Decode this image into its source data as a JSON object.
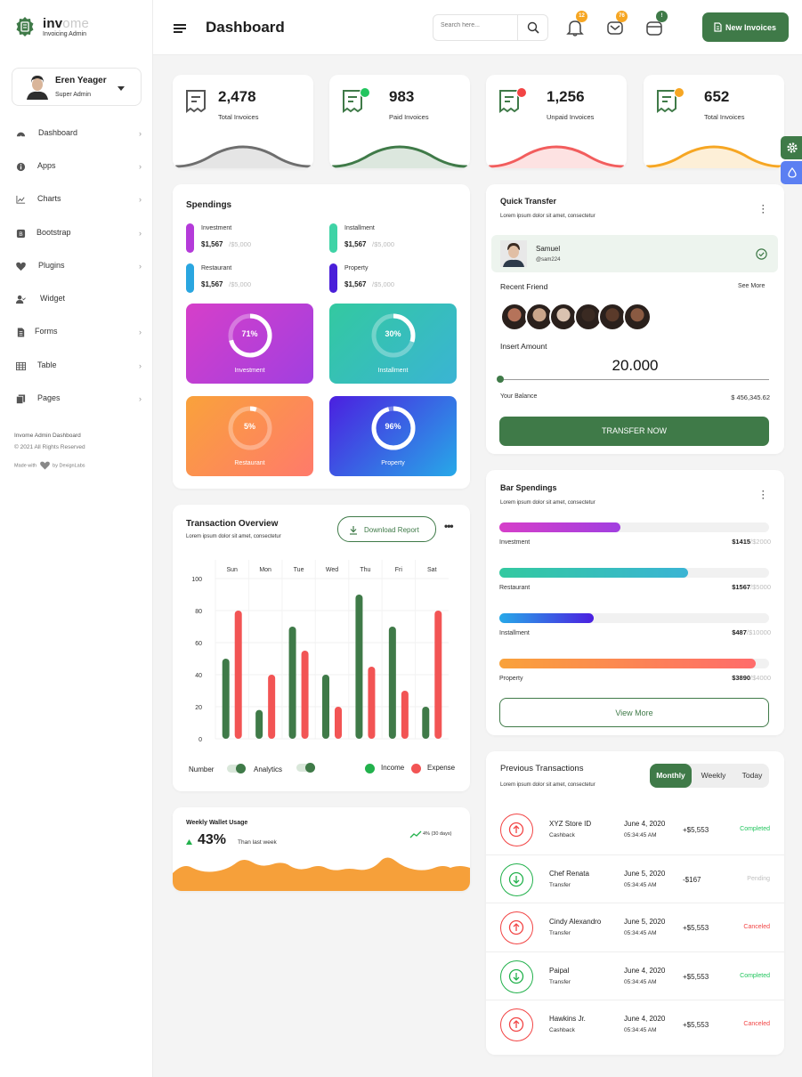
{
  "brand": {
    "name_main": "inv",
    "name_alt": "ome",
    "subtitle": "Invoicing Admin"
  },
  "profile": {
    "name": "Eren Yeager",
    "role": "Super Admin"
  },
  "sidebar": {
    "items": [
      {
        "label": "Dashboard",
        "icon": "dashboard-icon"
      },
      {
        "label": "Apps",
        "icon": "info-icon"
      },
      {
        "label": "Charts",
        "icon": "chart-icon"
      },
      {
        "label": "Bootstrap",
        "icon": "bootstrap-icon"
      },
      {
        "label": "Plugins",
        "icon": "heart-icon"
      },
      {
        "label": "Widget",
        "icon": "user-check-icon"
      },
      {
        "label": "Forms",
        "icon": "file-icon"
      },
      {
        "label": "Table",
        "icon": "table-icon"
      },
      {
        "label": "Pages",
        "icon": "copy-icon"
      }
    ],
    "footer_title": "Invome Admin Dashboard",
    "footer_copy": "© 2021 All Rights Reserved",
    "footer_made_pre": "Made with",
    "footer_made_post": "by DexignLabs"
  },
  "header": {
    "title": "Dashboard",
    "search_placeholder": "Search here...",
    "badges": {
      "notifications": "12",
      "messages": "76",
      "calendar": "!"
    },
    "new_button": "New Invoices"
  },
  "stats": [
    {
      "value": "2,478",
      "label": "Total Invoices",
      "color": "#6e6e6e"
    },
    {
      "value": "983",
      "label": "Paid Invoices",
      "color": "#3f7a48",
      "dot": "#22c55e"
    },
    {
      "value": "1,256",
      "label": "Unpaid Invoices",
      "color": "#f25d5d",
      "dot": "#f24444"
    },
    {
      "value": "652",
      "label": "Total Invoices",
      "color": "#f6a623",
      "dot": "#f6a623"
    }
  ],
  "spendings": {
    "title": "Spendings",
    "items": [
      {
        "name": "Investment",
        "value": "$1,567",
        "total": "/$5,000",
        "color": "#b43bd9"
      },
      {
        "name": "Installment",
        "value": "$1,567",
        "total": "/$5,000",
        "color": "#3fd3a6"
      },
      {
        "name": "Restaurant",
        "value": "$1,567",
        "total": "/$5,000",
        "color": "#2aa6e0"
      },
      {
        "name": "Property",
        "value": "$1,567",
        "total": "/$5,000",
        "color": "#4a1fd9"
      }
    ],
    "tiles": [
      {
        "percent": "71%",
        "label": "Investment",
        "fraction": 0.71
      },
      {
        "percent": "30%",
        "label": "Installment",
        "fraction": 0.3
      },
      {
        "percent": "5%",
        "label": "Restaurant",
        "fraction": 0.05
      },
      {
        "percent": "96%",
        "label": "Property",
        "fraction": 0.96
      }
    ]
  },
  "transaction_overview": {
    "title": "Transaction Overview",
    "subtitle": "Lorem ipsum dolor sit amet, consectetur",
    "download_label": "Download Report",
    "toggles": {
      "number": "Number",
      "analytics": "Analytics"
    },
    "legend": {
      "income": "Income",
      "expense": "Expense"
    }
  },
  "chart_data": {
    "type": "bar",
    "categories": [
      "Sun",
      "Mon",
      "Tue",
      "Wed",
      "Thu",
      "Fri",
      "Sat"
    ],
    "series": [
      {
        "name": "Income",
        "values": [
          50,
          18,
          70,
          40,
          90,
          70,
          20
        ],
        "color": "#3f7a48"
      },
      {
        "name": "Expense",
        "values": [
          80,
          40,
          55,
          20,
          45,
          30,
          80
        ],
        "color": "#f25454"
      }
    ],
    "yticks": [
      "0",
      "20",
      "40",
      "60",
      "80",
      "100"
    ],
    "ylim": [
      0,
      100
    ],
    "legend_position": "bottom-right"
  },
  "wallet": {
    "title": "Weekly Wallet Usage",
    "percent": "43%",
    "caption": "Than last week",
    "trend": "4% (30 days)"
  },
  "quick_transfer": {
    "title": "Quick Transfer",
    "subtitle": "Lorem ipsum dolor sit amet, consectetur",
    "selected_name": "Samuel",
    "selected_handle": "@sam224",
    "recent_label": "Recent Friend",
    "see_more": "See More",
    "amount_label": "Insert Amount",
    "amount": "20.000",
    "amount_fraction": 0,
    "balance_label": "Your Balance",
    "balance": "$ 456,345.62",
    "button": "TRANSFER NOW"
  },
  "bar_spendings": {
    "title": "Bar Spendings",
    "subtitle": "Lorem ipsum dolor sit amet, consectetur",
    "items": [
      {
        "label": "Investment",
        "value": "$1415",
        "total": "/$2000",
        "fraction": 0.45
      },
      {
        "label": "Restaurant",
        "value": "$1567",
        "total": "/$5000",
        "fraction": 0.7
      },
      {
        "label": "Installment",
        "value": "$487",
        "total": "/$10000",
        "fraction": 0.35
      },
      {
        "label": "Property",
        "value": "$3890",
        "total": "/$4000",
        "fraction": 0.95
      }
    ],
    "view_more": "View More"
  },
  "previous_transactions": {
    "title": "Previous Transactions",
    "subtitle": "Lorem ipsum dolor sit amet, consectetur",
    "tabs": [
      "Monthly",
      "Weekly",
      "Today"
    ],
    "rows": [
      {
        "name": "XYZ Store ID",
        "type": "Cashback",
        "date": "June 4, 2020",
        "time": "05:34:45 AM",
        "amount": "+$5,553",
        "status": "Completed",
        "direction": "up"
      },
      {
        "name": "Chef Renata",
        "type": "Transfer",
        "date": "June 5, 2020",
        "time": "05:34:45 AM",
        "amount": "-$167",
        "status": "Pending",
        "direction": "down"
      },
      {
        "name": "Cindy Alexandro",
        "type": "Transfer",
        "date": "June 5, 2020",
        "time": "05:34:45 AM",
        "amount": "+$5,553",
        "status": "Canceled",
        "direction": "up"
      },
      {
        "name": "Paipal",
        "type": "Transfer",
        "date": "June 4, 2020",
        "time": "05:34:45 AM",
        "amount": "+$5,553",
        "status": "Completed",
        "direction": "down"
      },
      {
        "name": "Hawkins Jr.",
        "type": "Cashback",
        "date": "June 4, 2020",
        "time": "05:34:45 AM",
        "amount": "+$5,553",
        "status": "Canceled",
        "direction": "up"
      }
    ]
  }
}
